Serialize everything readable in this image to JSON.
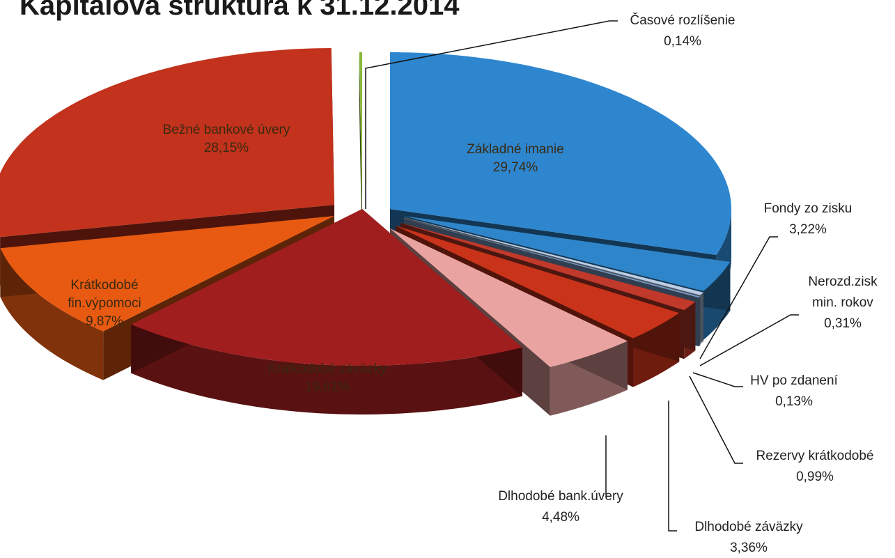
{
  "chart_data": {
    "type": "pie",
    "title": "Kapitálová štruktúra k 31.12.2014",
    "style": "3d-exploded",
    "slices": [
      {
        "label": "Základné imanie",
        "value": 29.74,
        "value_label": "29,74%",
        "color": "#2e86cf"
      },
      {
        "label": "Fondy zo zisku",
        "value": 3.22,
        "value_label": "3,22%",
        "color": "#2f85c9"
      },
      {
        "label": "Nerozd.zisk min. rokov",
        "value": 0.31,
        "value_label": "0,31%",
        "color": "#b9cde6"
      },
      {
        "label": "HV po zdanení",
        "value": 0.13,
        "value_label": "0,13%",
        "color": "#7a9cc8"
      },
      {
        "label": "Rezervy krátkodobé",
        "value": 0.99,
        "value_label": "0,99%",
        "color": "#c0392b"
      },
      {
        "label": "Dlhodobé záväzky",
        "value": 3.36,
        "value_label": "3,36%",
        "color": "#c8331a"
      },
      {
        "label": "Dlhodobé bank.úvery",
        "value": 4.48,
        "value_label": "4,48%",
        "color": "#e9a3a0"
      },
      {
        "label": "Krátkodobé záväzky",
        "value": 19.61,
        "value_label": "19,61%",
        "color": "#a11e1e"
      },
      {
        "label": "Krátkodobé fin.výpomoci",
        "value": 9.87,
        "value_label": "9,87%",
        "color": "#e85a12"
      },
      {
        "label": "Bežné bankové úvery",
        "value": 28.15,
        "value_label": "28,15%",
        "color": "#c2321c"
      },
      {
        "label": "Časové rozlíšenie",
        "value": 0.14,
        "value_label": "0,14%",
        "color": "#8ab83a"
      }
    ]
  }
}
